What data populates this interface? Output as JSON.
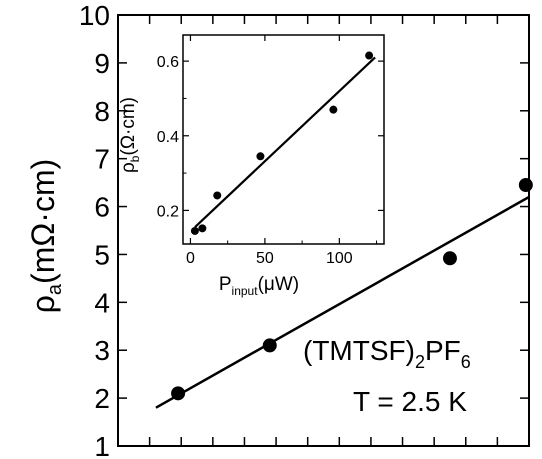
{
  "chart_data": [
    {
      "id": "main",
      "type": "scatter",
      "title": "",
      "xlabel": "",
      "ylabel": {
        "rho": "ρ",
        "sub": "a",
        "rest": "(mΩ·cm)"
      },
      "ylim": [
        1,
        10
      ],
      "yticks": [
        "1",
        "2",
        "3",
        "4",
        "5",
        "6",
        "7",
        "8",
        "9",
        "10"
      ],
      "xlim": [
        0,
        13
      ],
      "xtick_count": 14,
      "x_tick_labels_shown": false,
      "points": [
        {
          "x": 1.9,
          "y": 2.1
        },
        {
          "x": 4.8,
          "y": 3.1
        },
        {
          "x": 10.5,
          "y": 4.92
        },
        {
          "x": 12.9,
          "y": 6.45
        }
      ],
      "fit_line": {
        "x": [
          1.2,
          13.0
        ],
        "y": [
          1.8,
          6.2
        ]
      },
      "annotations": {
        "compound": {
          "open": "(TMTSF)",
          "sub1": "2",
          "mid": "PF",
          "sub2": "6"
        },
        "temperature": "T = 2.5 K"
      }
    },
    {
      "id": "inset",
      "type": "scatter",
      "title": "",
      "xlabel": {
        "p": "P",
        "sub": "input",
        "rest": "(μW)"
      },
      "ylabel": {
        "rho": "ρ",
        "sub": "b",
        "rest": "(Ω·cm)"
      },
      "xlim": [
        -5,
        130
      ],
      "ylim": [
        0.11,
        0.67
      ],
      "xticks": [
        "0",
        "50",
        "100"
      ],
      "yticks": [
        "0.2",
        "0.4",
        "0.6"
      ],
      "points": [
        {
          "x": 3,
          "y": 0.145
        },
        {
          "x": 8,
          "y": 0.152
        },
        {
          "x": 18,
          "y": 0.24
        },
        {
          "x": 47,
          "y": 0.345
        },
        {
          "x": 96,
          "y": 0.47
        },
        {
          "x": 120,
          "y": 0.615
        }
      ],
      "fit_line": {
        "x": [
          3,
          124
        ],
        "y": [
          0.155,
          0.61
        ]
      }
    }
  ]
}
